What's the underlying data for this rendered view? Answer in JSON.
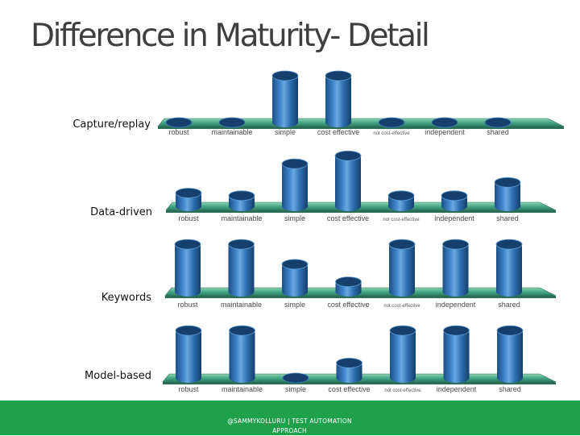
{
  "slide": {
    "title": "Difference in Maturity- Detail",
    "footer": "@SAMMYKOLLURU | TEST AUTOMATION APPROACH"
  },
  "colors": {
    "cylinder": "#2c6fb0",
    "platform": "#46a987",
    "footer": "#1fa04a"
  },
  "chart_data": [
    {
      "type": "bar",
      "categories": [
        "robust",
        "maintainable",
        "simple",
        "cost effective",
        "not cost-effective",
        "independent",
        "shared"
      ],
      "series": [
        {
          "name": "Capture/replay",
          "values": [
            0,
            0,
            1,
            1,
            0,
            0,
            0
          ]
        }
      ],
      "ylim": [
        0,
        1
      ]
    },
    {
      "type": "bar",
      "categories": [
        "robust",
        "maintainable",
        "simple",
        "cost effective",
        "not cost-effective",
        "independent",
        "shared"
      ],
      "series": [
        {
          "name": "Data-driven",
          "values": [
            0.25,
            0.2,
            0.8,
            0.95,
            0.2,
            0.2,
            0.45
          ]
        }
      ],
      "ylim": [
        0,
        1
      ]
    },
    {
      "type": "bar",
      "categories": [
        "robust",
        "maintainable",
        "simple",
        "cost effective",
        "not cost-effective",
        "independent",
        "shared"
      ],
      "series": [
        {
          "name": "Keywords",
          "values": [
            0.95,
            0.95,
            0.55,
            0.2,
            0.95,
            0.95,
            0.95
          ]
        }
      ],
      "ylim": [
        0,
        1
      ]
    },
    {
      "type": "bar",
      "categories": [
        "robust",
        "maintainable",
        "simple",
        "cost effective",
        "not cost-effective",
        "independent",
        "shared"
      ],
      "series": [
        {
          "name": "Model-based",
          "values": [
            0.95,
            0.95,
            0,
            0.3,
            0.95,
            0.95,
            0.95
          ]
        }
      ],
      "ylim": [
        0,
        1
      ]
    }
  ]
}
